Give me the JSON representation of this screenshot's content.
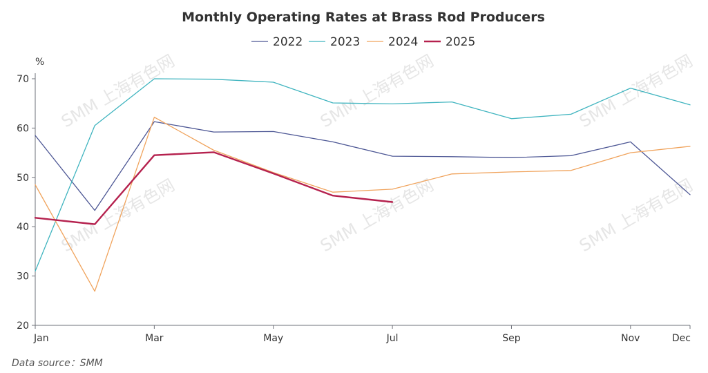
{
  "chart_data": {
    "type": "line",
    "title": "Monthly Operating Rates at Brass Rod Producers",
    "ylabel": "%",
    "xlabel": "",
    "x": [
      "Jan",
      "Feb",
      "Mar",
      "Apr",
      "May",
      "Jun",
      "Jul",
      "Aug",
      "Sep",
      "Oct",
      "Nov",
      "Dec"
    ],
    "x_tick_labels": [
      "Jan",
      "Mar",
      "May",
      "Jul",
      "Sep",
      "Nov",
      "Dec"
    ],
    "y_ticks": [
      20,
      30,
      40,
      50,
      60,
      70
    ],
    "ylim": [
      20,
      70
    ],
    "grid": false,
    "legend_position": "top-center",
    "series": [
      {
        "name": "2022",
        "color": "#4c5694",
        "width": 1.3,
        "values": [
          58.5,
          43.3,
          61.3,
          59.2,
          59.3,
          57.2,
          54.3,
          54.2,
          54.0,
          54.4,
          57.2,
          46.5
        ]
      },
      {
        "name": "2023",
        "color": "#3fb4bf",
        "width": 1.3,
        "values": [
          31.0,
          60.5,
          70.0,
          69.9,
          69.3,
          65.1,
          64.9,
          65.3,
          61.9,
          62.8,
          68.1,
          64.7
        ]
      },
      {
        "name": "2024",
        "color": "#f0a35c",
        "width": 1.3,
        "values": [
          48.5,
          26.9,
          62.2,
          55.5,
          51.0,
          47.0,
          47.6,
          50.7,
          51.1,
          51.4,
          55.0,
          56.3
        ]
      },
      {
        "name": "2025",
        "color": "#b5214e",
        "width": 2.4,
        "values": [
          41.8,
          40.5,
          54.5,
          55.1,
          50.8,
          46.3,
          45.0,
          null,
          null,
          null,
          null,
          null
        ]
      }
    ]
  },
  "watermark": "SMM 上海有色网",
  "source": "Data source：SMM"
}
